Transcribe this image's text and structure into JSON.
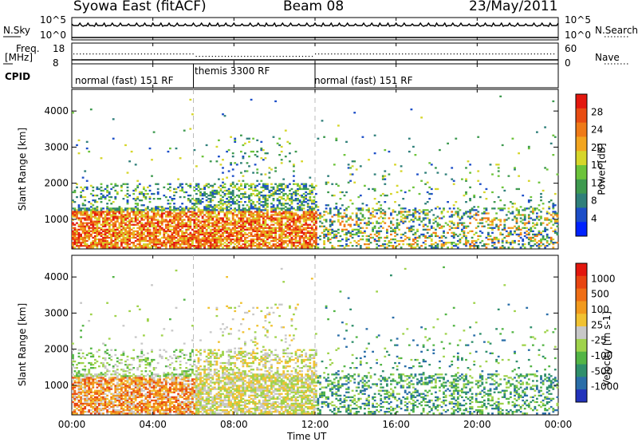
{
  "header": {
    "station": "Syowa East (fitACF)",
    "beam": "Beam 08",
    "date": "23/May/2011"
  },
  "status_panels": {
    "nsky_label": "N.Sky",
    "nsky_ticks": [
      "10^5",
      "10^0"
    ],
    "nsearch_label": "N.Search",
    "nsearch_ticks": [
      "10^5",
      "10^0"
    ],
    "freq_label": "Freq.",
    "freq_unit": "[MHz]",
    "freq_ticks": [
      "18",
      "8"
    ],
    "nave_label": "Nave",
    "nave_ticks": [
      "60",
      "0"
    ],
    "cpid_label": "CPID"
  },
  "cpid_segments": [
    {
      "label": "normal (fast) 151 RF",
      "start_h": 0,
      "end_h": 6
    },
    {
      "label": "themis 3300 RF",
      "start_h": 6,
      "end_h": 12
    },
    {
      "label": "normal (fast) 151 RF",
      "start_h": 12,
      "end_h": 24
    }
  ],
  "chart_data": [
    {
      "type": "heatmap",
      "panel": "power",
      "xlabel": "Time UT",
      "ylabel": "Slant Range [km]",
      "x_range_hours": [
        0,
        24
      ],
      "x_ticks": [
        "00:00",
        "04:00",
        "08:00",
        "12:00",
        "16:00",
        "20:00",
        "00:00"
      ],
      "ylim": [
        180,
        4600
      ],
      "y_ticks": [
        1000,
        2000,
        3000,
        4000
      ],
      "colorbar": {
        "label": "Power [dB]",
        "ticks": [
          "28",
          "24",
          "20",
          "16",
          "12",
          "8",
          "4"
        ],
        "colors": [
          "#0022ff",
          "#1c4ec8",
          "#2f7f7a",
          "#3e9a4f",
          "#6cc33a",
          "#d6d62a",
          "#f2a51f",
          "#ef7a17",
          "#e84c12",
          "#e3170e"
        ]
      }
    },
    {
      "type": "heatmap",
      "panel": "velocity",
      "xlabel": "Time UT",
      "ylabel": "Slant Range [km]",
      "x_range_hours": [
        0,
        24
      ],
      "x_ticks": [
        "00:00",
        "04:00",
        "08:00",
        "12:00",
        "16:00",
        "20:00",
        "00:00"
      ],
      "ylim": [
        180,
        4600
      ],
      "y_ticks": [
        1000,
        2000,
        3000,
        4000
      ],
      "colorbar": {
        "label": "Velocity [m s-1]",
        "ticks": [
          "1000",
          "500",
          "100",
          "25",
          "-25",
          "-100",
          "-500",
          "-1000"
        ],
        "colors": [
          "#2233bb",
          "#2a6ea8",
          "#2f8f6b",
          "#53b545",
          "#9fd34b",
          "#c8c8c8",
          "#f1c232",
          "#f29a1d",
          "#ef6e15",
          "#e84511",
          "#e3170e"
        ]
      }
    }
  ],
  "x_axis_title": "Time UT"
}
